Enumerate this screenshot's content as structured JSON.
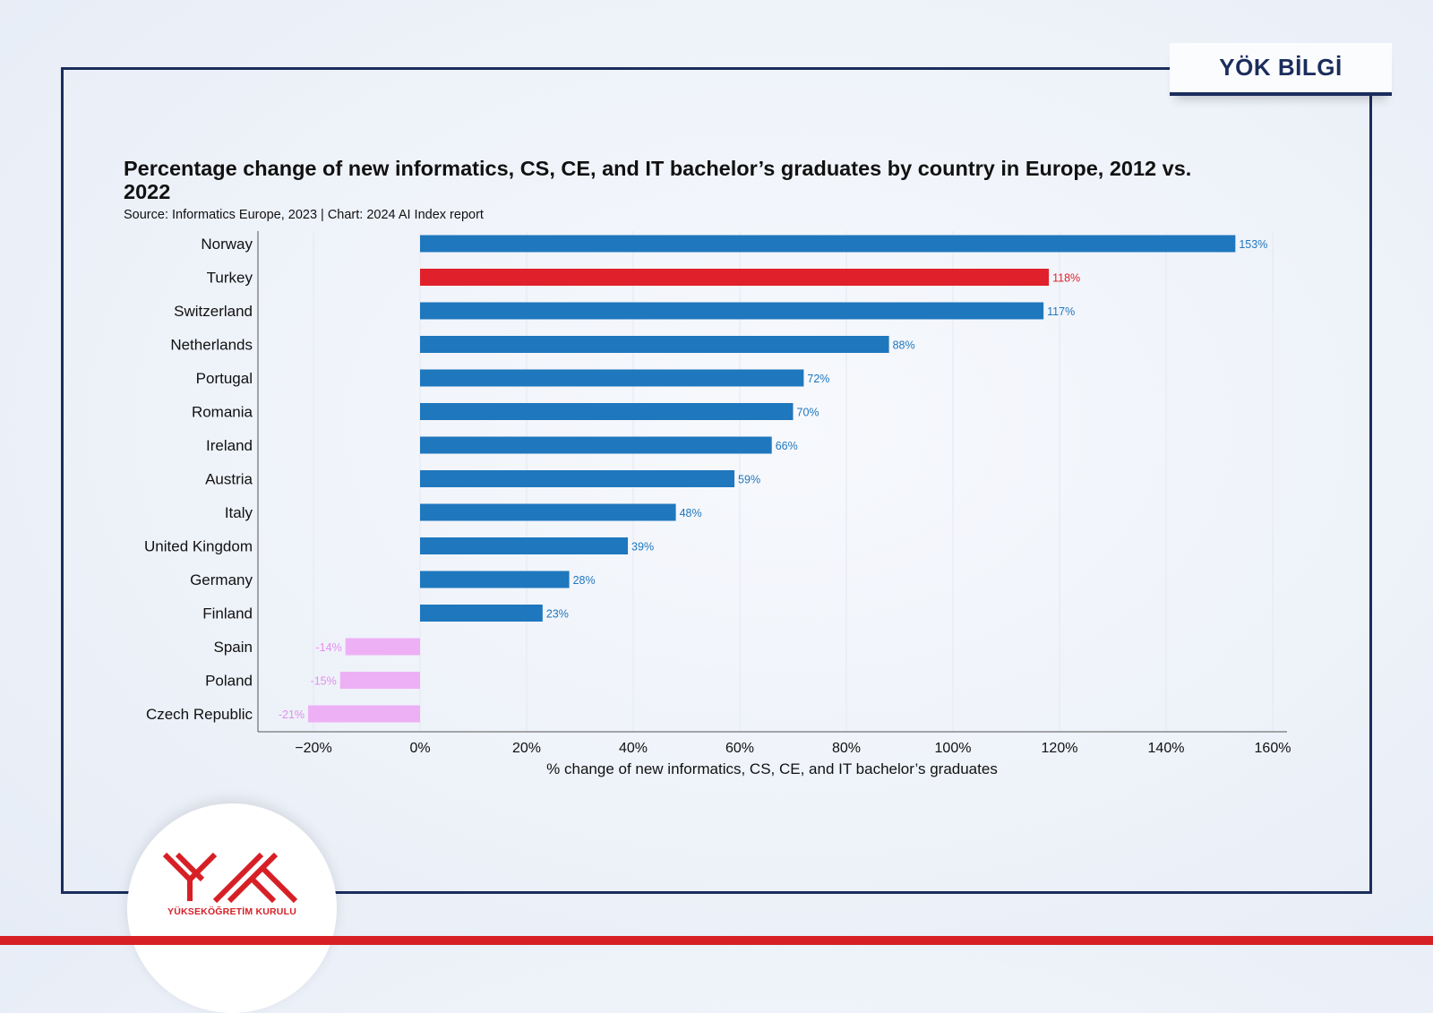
{
  "badge": {
    "label": "YÖK BİLGİ"
  },
  "logo": {
    "org_name": "YÜKSEKÖĞRETİM KURULU"
  },
  "colors": {
    "positive": "#1f77bd",
    "highlight": "#e0212b",
    "negative": "#eeb0f5",
    "frame": "#1b2d5c"
  },
  "chart_data": {
    "type": "bar",
    "orientation": "horizontal",
    "title": "Percentage change of new informatics, CS, CE, and IT bachelor’s graduates by country in Europe, 2012 vs. 2022",
    "subtitle": "Source: Informatics Europe, 2023 | Chart: 2024 AI Index report",
    "xlabel": "% change of new informatics, CS, CE, and IT bachelor’s graduates",
    "xlim": [
      -30,
      160
    ],
    "xticks": [
      -20,
      0,
      20,
      40,
      60,
      80,
      100,
      120,
      140,
      160
    ],
    "xtick_labels": [
      "−20%",
      "0%",
      "20%",
      "40%",
      "60%",
      "80%",
      "100%",
      "120%",
      "140%",
      "160%"
    ],
    "grid": true,
    "categories": [
      "Norway",
      "Turkey",
      "Switzerland",
      "Netherlands",
      "Portugal",
      "Romania",
      "Ireland",
      "Austria",
      "Italy",
      "United Kingdom",
      "Germany",
      "Finland",
      "Spain",
      "Poland",
      "Czech Republic"
    ],
    "values": [
      153,
      118,
      117,
      88,
      72,
      70,
      66,
      59,
      48,
      39,
      28,
      23,
      -14,
      -15,
      -21
    ],
    "value_labels": [
      "153%",
      "118%",
      "117%",
      "88%",
      "72%",
      "70%",
      "66%",
      "59%",
      "48%",
      "39%",
      "28%",
      "23%",
      "-14%",
      "-15%",
      "-21%"
    ],
    "highlight": "Turkey"
  }
}
